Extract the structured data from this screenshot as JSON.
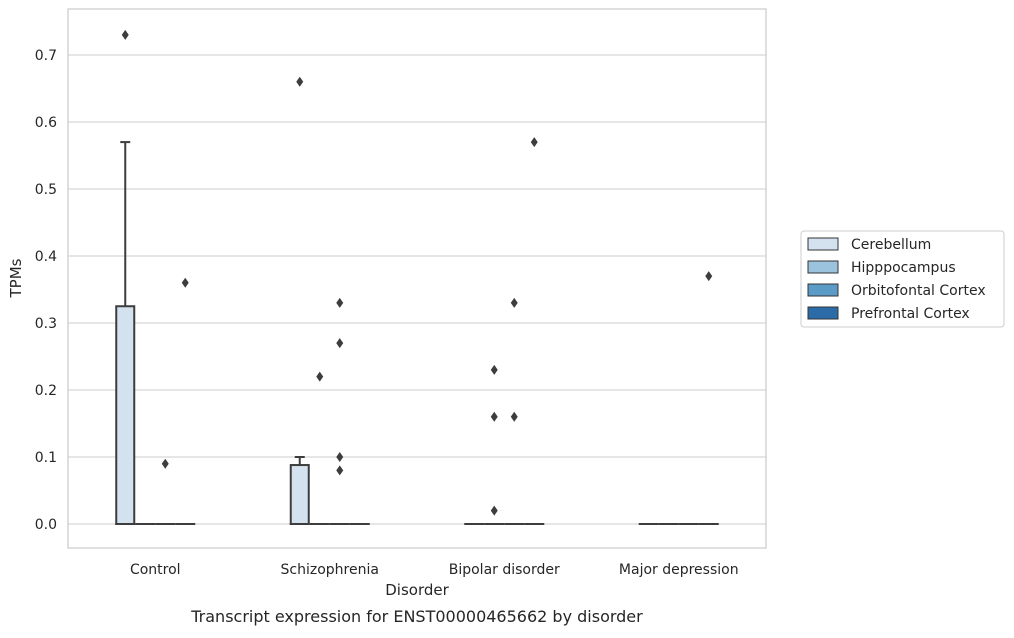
{
  "chart_data": {
    "type": "box",
    "title": "",
    "caption": "Transcript expression for ENST00000465662 by disorder",
    "xlabel": "Disorder",
    "ylabel": "TPMs",
    "ylim": [
      -0.035,
      0.775
    ],
    "yticks": [
      "0.0",
      "0.1",
      "0.2",
      "0.3",
      "0.4",
      "0.5",
      "0.6",
      "0.7"
    ],
    "grid": "horizontal",
    "legend_position": "right",
    "categories": [
      "Control",
      "Schizophrenia",
      "Bipolar disorder",
      "Major depression"
    ],
    "series": [
      {
        "name": "Cerebellum",
        "color": "#d4e2f0",
        "boxes": [
          {
            "q1": 0.0,
            "median": 0.0,
            "q3": 0.325,
            "whisker_low": 0.0,
            "whisker_high": 0.57,
            "outliers": [
              0.73
            ]
          },
          {
            "q1": 0.0,
            "median": 0.0,
            "q3": 0.088,
            "whisker_low": 0.0,
            "whisker_high": 0.1,
            "outliers": [
              0.66
            ]
          },
          {
            "q1": 0.0,
            "median": 0.0,
            "q3": 0.0,
            "whisker_low": 0.0,
            "whisker_high": 0.0,
            "outliers": []
          },
          {
            "q1": 0.0,
            "median": 0.0,
            "q3": 0.0,
            "whisker_low": 0.0,
            "whisker_high": 0.0,
            "outliers": []
          }
        ]
      },
      {
        "name": "Hipppocampus",
        "color": "#9cc3dd",
        "boxes": [
          {
            "q1": 0.0,
            "median": 0.0,
            "q3": 0.0,
            "whisker_low": 0.0,
            "whisker_high": 0.0,
            "outliers": []
          },
          {
            "q1": 0.0,
            "median": 0.0,
            "q3": 0.0,
            "whisker_low": 0.0,
            "whisker_high": 0.0,
            "outliers": [
              0.22
            ]
          },
          {
            "q1": 0.0,
            "median": 0.0,
            "q3": 0.0,
            "whisker_low": 0.0,
            "whisker_high": 0.0,
            "outliers": [
              0.23,
              0.16,
              0.02
            ]
          },
          {
            "q1": 0.0,
            "median": 0.0,
            "q3": 0.0,
            "whisker_low": 0.0,
            "whisker_high": 0.0,
            "outliers": []
          }
        ]
      },
      {
        "name": "Orbitofontal Cortex",
        "color": "#5a9bc8",
        "boxes": [
          {
            "q1": 0.0,
            "median": 0.0,
            "q3": 0.0,
            "whisker_low": 0.0,
            "whisker_high": 0.0,
            "outliers": [
              0.09
            ]
          },
          {
            "q1": 0.0,
            "median": 0.0,
            "q3": 0.0,
            "whisker_low": 0.0,
            "whisker_high": 0.0,
            "outliers": [
              0.33,
              0.27,
              0.1,
              0.08
            ]
          },
          {
            "q1": 0.0,
            "median": 0.0,
            "q3": 0.0,
            "whisker_low": 0.0,
            "whisker_high": 0.0,
            "outliers": [
              0.33,
              0.16
            ]
          },
          {
            "q1": 0.0,
            "median": 0.0,
            "q3": 0.0,
            "whisker_low": 0.0,
            "whisker_high": 0.0,
            "outliers": []
          }
        ]
      },
      {
        "name": "Prefrontal Cortex",
        "color": "#2b6ca8",
        "boxes": [
          {
            "q1": 0.0,
            "median": 0.0,
            "q3": 0.0,
            "whisker_low": 0.0,
            "whisker_high": 0.0,
            "outliers": [
              0.36
            ]
          },
          {
            "q1": 0.0,
            "median": 0.0,
            "q3": 0.0,
            "whisker_low": 0.0,
            "whisker_high": 0.0,
            "outliers": []
          },
          {
            "q1": 0.0,
            "median": 0.0,
            "q3": 0.0,
            "whisker_low": 0.0,
            "whisker_high": 0.0,
            "outliers": [
              0.57
            ]
          },
          {
            "q1": 0.0,
            "median": 0.0,
            "q3": 0.0,
            "whisker_low": 0.0,
            "whisker_high": 0.0,
            "outliers": [
              0.37
            ]
          }
        ]
      }
    ]
  }
}
